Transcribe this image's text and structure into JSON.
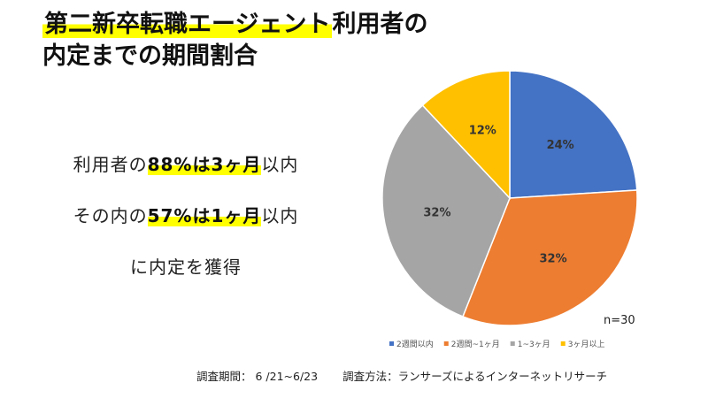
{
  "title": {
    "highlighted": "第二新卒転職エージェント",
    "rest": "利用者の",
    "line2": "内定までの期間割合"
  },
  "statements": [
    {
      "prefix": "利用者の",
      "bold": "88%は3ヶ月",
      "suffix": "以内"
    },
    {
      "prefix": "その内の",
      "bold": "57%は1ヶ月",
      "suffix": "以内"
    },
    {
      "prefix": "に内定を獲得",
      "bold": "",
      "suffix": ""
    }
  ],
  "chart_data": {
    "type": "pie",
    "categories": [
      "2週間以内",
      "2週間~1ヶ月",
      "1~3ヶ月",
      "3ヶ月以上"
    ],
    "values": [
      24,
      32,
      32,
      12
    ],
    "labels": [
      "24%",
      "32%",
      "32%",
      "12%"
    ],
    "colors": [
      "#4472c4",
      "#ed7d31",
      "#a5a5a5",
      "#ffc000"
    ],
    "annotation": "n=30",
    "legend_position": "bottom"
  },
  "footer": {
    "survey_period": "調査期間： 6 /21~6/23",
    "survey_method": "調査方法：ランサーズによるインターネットリサーチ"
  }
}
